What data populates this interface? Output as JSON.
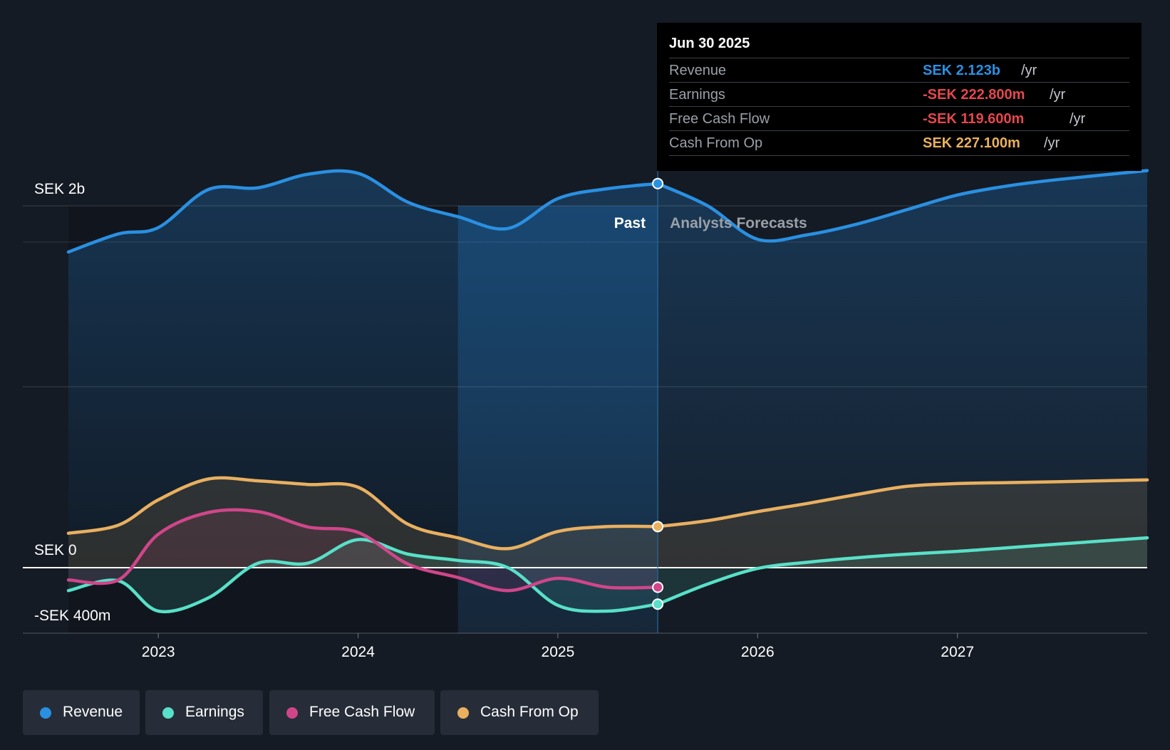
{
  "chart_data": {
    "type": "area",
    "currency_unit": "SEK",
    "y_axis_labels": [
      {
        "value": 2000,
        "label": "SEK 2b"
      },
      {
        "value": 0,
        "label": "SEK 0"
      },
      {
        "value": -400,
        "label": "-SEK 400m"
      }
    ],
    "ylim": [
      -400,
      2200
    ],
    "xlim": [
      2022.55,
      2027.95
    ],
    "x_ticks": [
      {
        "value": 2023,
        "label": "2023"
      },
      {
        "value": 2024,
        "label": "2024"
      },
      {
        "value": 2025,
        "label": "2025"
      },
      {
        "value": 2026,
        "label": "2026"
      },
      {
        "value": 2027,
        "label": "2027"
      }
    ],
    "past_label": "Past",
    "forecast_label": "Analysts Forecasts",
    "divider_x": 2025.5,
    "highlight_start_x": 2024.5,
    "series": [
      {
        "name": "Revenue",
        "color": "#2a90e2",
        "points": [
          [
            2022.55,
            1745
          ],
          [
            2022.8,
            1845
          ],
          [
            2023.0,
            1880
          ],
          [
            2023.25,
            2090
          ],
          [
            2023.5,
            2100
          ],
          [
            2023.75,
            2175
          ],
          [
            2024.0,
            2180
          ],
          [
            2024.25,
            2020
          ],
          [
            2024.5,
            1940
          ],
          [
            2024.75,
            1875
          ],
          [
            2025.0,
            2040
          ],
          [
            2025.25,
            2095
          ],
          [
            2025.5,
            2123
          ]
        ],
        "forecast": [
          [
            2025.5,
            2123
          ],
          [
            2025.75,
            2000
          ],
          [
            2026.0,
            1815
          ],
          [
            2026.25,
            1840
          ],
          [
            2026.5,
            1900
          ],
          [
            2026.75,
            1980
          ],
          [
            2027.0,
            2060
          ],
          [
            2027.25,
            2110
          ],
          [
            2027.5,
            2145
          ],
          [
            2027.95,
            2195
          ]
        ]
      },
      {
        "name": "Earnings",
        "color": "#58e0c8",
        "points": [
          [
            2022.55,
            -140
          ],
          [
            2022.8,
            -80
          ],
          [
            2023.0,
            -265
          ],
          [
            2023.25,
            -185
          ],
          [
            2023.5,
            25
          ],
          [
            2023.75,
            25
          ],
          [
            2024.0,
            155
          ],
          [
            2024.25,
            75
          ],
          [
            2024.5,
            40
          ],
          [
            2024.75,
            0
          ],
          [
            2025.0,
            -230
          ],
          [
            2025.25,
            -265
          ],
          [
            2025.5,
            -222.8
          ]
        ],
        "forecast": [
          [
            2025.5,
            -222.8
          ],
          [
            2025.75,
            -100
          ],
          [
            2026.0,
            -5
          ],
          [
            2026.25,
            30
          ],
          [
            2026.5,
            55
          ],
          [
            2026.75,
            75
          ],
          [
            2027.0,
            90
          ],
          [
            2027.25,
            110
          ],
          [
            2027.5,
            130
          ],
          [
            2027.95,
            165
          ]
        ]
      },
      {
        "name": "Free Cash Flow",
        "color": "#d0468a",
        "points": [
          [
            2022.55,
            -75
          ],
          [
            2022.8,
            -75
          ],
          [
            2023.0,
            185
          ],
          [
            2023.25,
            305
          ],
          [
            2023.5,
            310
          ],
          [
            2023.75,
            225
          ],
          [
            2024.0,
            195
          ],
          [
            2024.25,
            20
          ],
          [
            2024.5,
            -60
          ],
          [
            2024.75,
            -140
          ],
          [
            2025.0,
            -65
          ],
          [
            2025.25,
            -120
          ],
          [
            2025.5,
            -119.6
          ]
        ],
        "forecast": []
      },
      {
        "name": "Cash From Op",
        "color": "#e9b060",
        "points": [
          [
            2022.55,
            190
          ],
          [
            2022.8,
            235
          ],
          [
            2023.0,
            375
          ],
          [
            2023.25,
            490
          ],
          [
            2023.5,
            480
          ],
          [
            2023.75,
            460
          ],
          [
            2024.0,
            445
          ],
          [
            2024.25,
            240
          ],
          [
            2024.5,
            165
          ],
          [
            2024.75,
            105
          ],
          [
            2025.0,
            200
          ],
          [
            2025.25,
            227
          ],
          [
            2025.5,
            227.1
          ]
        ],
        "forecast": [
          [
            2025.5,
            227.1
          ],
          [
            2025.75,
            260
          ],
          [
            2026.0,
            310
          ],
          [
            2026.25,
            355
          ],
          [
            2026.5,
            405
          ],
          [
            2026.75,
            450
          ],
          [
            2027.0,
            465
          ],
          [
            2027.25,
            470
          ],
          [
            2027.5,
            475
          ],
          [
            2027.95,
            485
          ]
        ]
      }
    ]
  },
  "tooltip": {
    "date": "Jun 30 2025",
    "rows": [
      {
        "label": "Revenue",
        "value": "SEK 2.123b",
        "unit": "/yr",
        "color": "#2a90e2"
      },
      {
        "label": "Earnings",
        "value": "-SEK 222.800m",
        "unit": "/yr",
        "color": "#e5474d"
      },
      {
        "label": "Free Cash Flow",
        "value": "-SEK 119.600m",
        "unit": "/yr",
        "color": "#e5474d"
      },
      {
        "label": "Cash From Op",
        "value": "SEK 227.100m",
        "unit": "/yr",
        "color": "#e9b060"
      }
    ]
  },
  "legend": [
    {
      "label": "Revenue",
      "color": "#2a90e2"
    },
    {
      "label": "Earnings",
      "color": "#58e0c8"
    },
    {
      "label": "Free Cash Flow",
      "color": "#d0468a"
    },
    {
      "label": "Cash From Op",
      "color": "#e9b060"
    }
  ]
}
